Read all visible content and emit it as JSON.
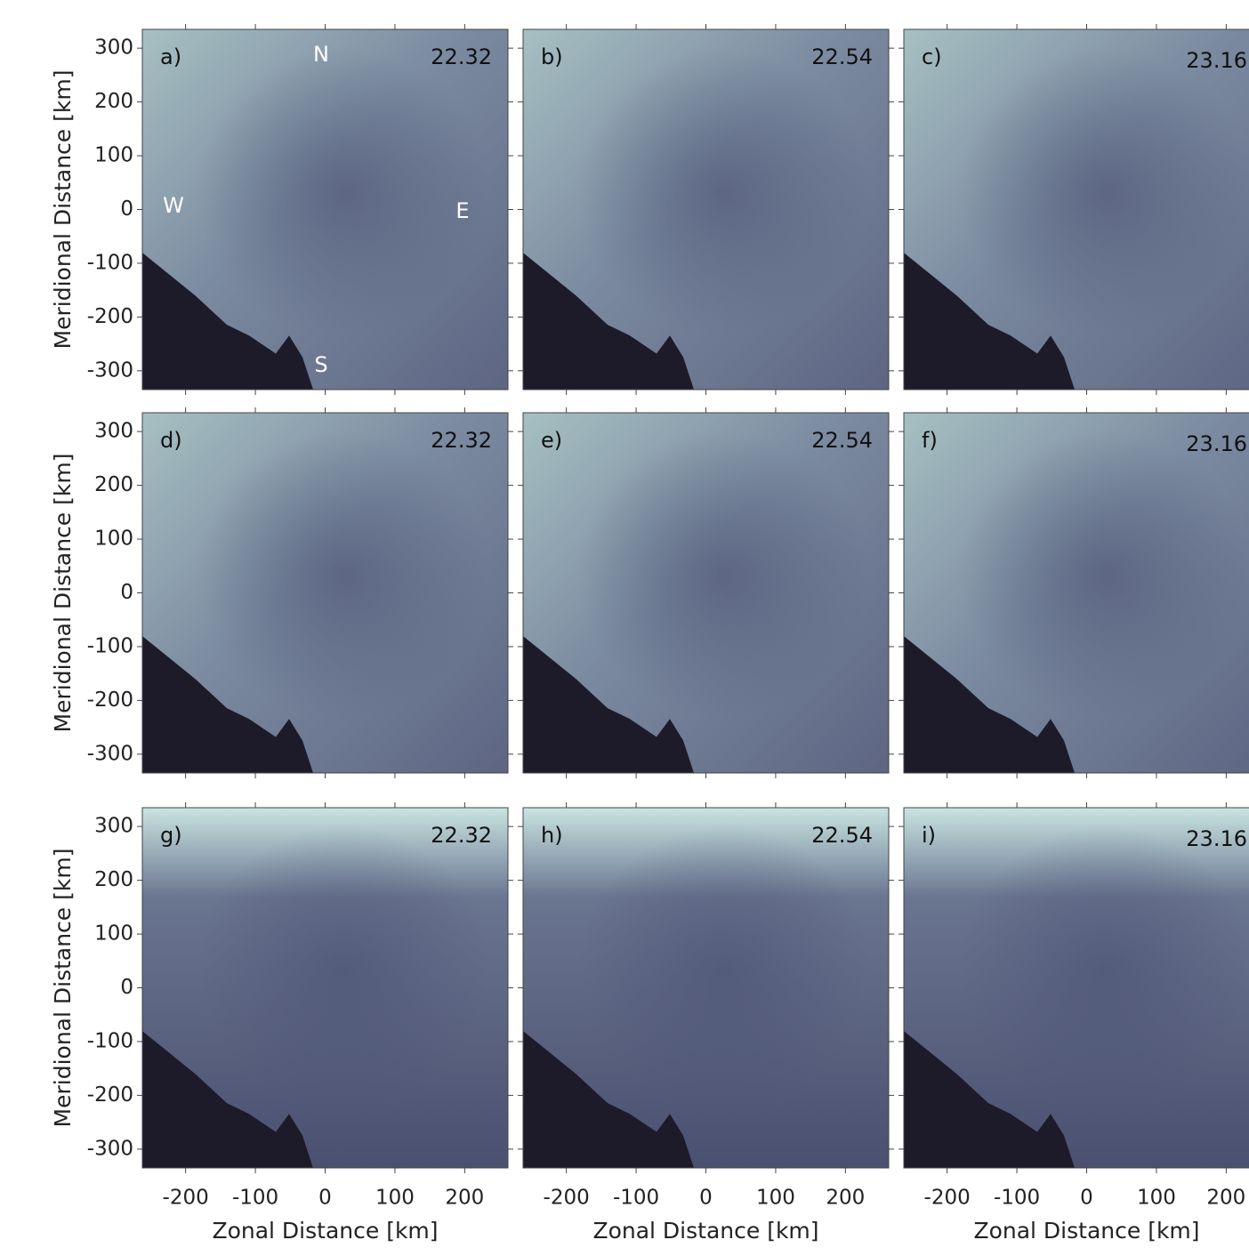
{
  "chart_data": [
    {
      "type": "image",
      "panel_label": "a)",
      "time": "22.32",
      "annotations": [
        "N",
        "W",
        "E",
        "S"
      ],
      "ylabel": "Meridional Distance [km]",
      "ylim": [
        -335,
        335
      ],
      "yticks": [
        -300,
        -200,
        -100,
        0,
        100,
        200,
        300
      ]
    },
    {
      "type": "image",
      "panel_label": "b)",
      "time": "22.54"
    },
    {
      "type": "image",
      "panel_label": "c)",
      "time": "23.16"
    },
    {
      "type": "image",
      "panel_label": "d)",
      "time": "22.32",
      "ylabel": "Meridional Distance [km]",
      "ylim": [
        -335,
        335
      ],
      "yticks": [
        -300,
        -200,
        -100,
        0,
        100,
        200,
        300
      ]
    },
    {
      "type": "image",
      "panel_label": "e)",
      "time": "22.54"
    },
    {
      "type": "image",
      "panel_label": "f)",
      "time": "23.16"
    },
    {
      "type": "image",
      "panel_label": "g)",
      "time": "22.32",
      "ylabel": "Meridional Distance [km]",
      "ylim": [
        -335,
        335
      ],
      "yticks": [
        -300,
        -200,
        -100,
        0,
        100,
        200,
        300
      ],
      "xlabel": "Zonal Distance [km]",
      "xlim": [
        -262,
        262
      ],
      "xticks": [
        -200,
        -100,
        0,
        100,
        200
      ]
    },
    {
      "type": "image",
      "panel_label": "h)",
      "time": "22.54",
      "xlabel": "Zonal Distance [km]",
      "xlim": [
        -262,
        262
      ],
      "xticks": [
        -200,
        -100,
        0,
        100,
        200
      ]
    },
    {
      "type": "image",
      "panel_label": "i)",
      "time": "23.16",
      "xlabel": "Zonal Distance [km]",
      "xlim": [
        -262,
        262
      ],
      "xticks": [
        -200,
        -100,
        0,
        100,
        200
      ]
    }
  ]
}
